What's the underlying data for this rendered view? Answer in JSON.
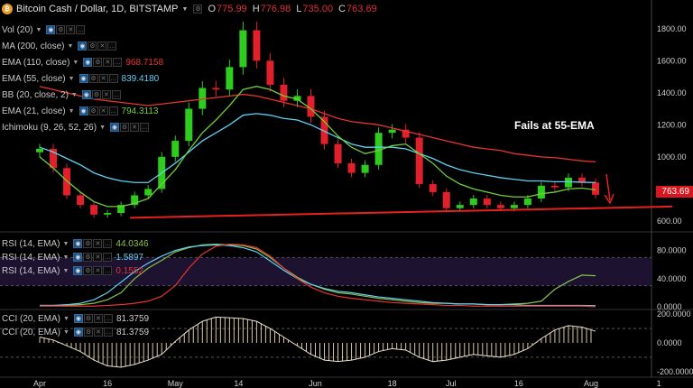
{
  "header": {
    "title": "Bitcoin Cash / Dollar, 1D, BITSTAMP",
    "ohlc": [
      {
        "k": "O",
        "v": "775.99"
      },
      {
        "k": "H",
        "v": "776.98"
      },
      {
        "k": "L",
        "v": "735.00"
      },
      {
        "k": "C",
        "v": "763.69"
      }
    ]
  },
  "legends": [
    {
      "label": "Vol (20)",
      "value": "",
      "color": "#cccccc"
    },
    {
      "label": "MA (200, close)",
      "value": "",
      "color": "#cccccc"
    },
    {
      "label": "EMA (110, close)",
      "value": "968.7158",
      "color": "#e8332e"
    },
    {
      "label": "EMA (55, close)",
      "value": "839.4180",
      "color": "#5fd0f5"
    },
    {
      "label": "BB (20, close, 2)",
      "value": "",
      "color": "#cccccc"
    },
    {
      "label": "EMA (21, close)",
      "value": "794.3113",
      "color": "#6fcf3a"
    },
    {
      "label": "Ichimoku (9, 26, 52, 26)",
      "value": "",
      "color": "#cccccc"
    }
  ],
  "rsi_legends": [
    {
      "label": "RSI (14, EMA)",
      "value": "44.0346",
      "color": "#88c34a"
    },
    {
      "label": "RSI (14, EMA)",
      "value": "1.5897",
      "color": "#5fd0f5"
    },
    {
      "label": "RSI (14, EMA)",
      "value": "0.1552",
      "color": "#e8332e"
    }
  ],
  "cci_legends": [
    {
      "label": "CCI (20, EMA)",
      "value": "81.3759",
      "color": "#cccccc"
    },
    {
      "label": "CCI (20, EMA)",
      "value": "81.3759",
      "color": "#cccccc"
    }
  ],
  "annotation": "Fails at 55-EMA",
  "last_price": "763.69",
  "colors": {
    "up": "#2ecc1f",
    "down": "#e0202a",
    "ema110": "#e8332e",
    "ema55": "#5fd0f5",
    "ema21": "#6fcf3a",
    "trendline": "#e82020"
  },
  "chart_data": [
    {
      "type": "line",
      "title": "Bitcoin Cash / Dollar, 1D, BITSTAMP",
      "xlabel": "",
      "ylabel": "",
      "ylim": [
        560,
        1900
      ],
      "y_ticks": [
        "1800.00",
        "1600.00",
        "1400.00",
        "1200.00",
        "1000.00",
        "800.00",
        "600.00"
      ],
      "y_tick_values": [
        1800,
        1600,
        1400,
        1200,
        1000,
        800,
        600
      ],
      "x": [
        0,
        3,
        6,
        9,
        12,
        15,
        18,
        21,
        24,
        27,
        30,
        33,
        36,
        39,
        42,
        45,
        48,
        51,
        54,
        57,
        60,
        63,
        66,
        69,
        72,
        75,
        78,
        81,
        84,
        87,
        90,
        93,
        96,
        99,
        102,
        105,
        108,
        111,
        114,
        117,
        120,
        123
      ],
      "close": [
        1050,
        930,
        760,
        700,
        640,
        650,
        700,
        760,
        800,
        1000,
        1100,
        1300,
        1430,
        1420,
        1560,
        1790,
        1600,
        1450,
        1350,
        1380,
        1250,
        1080,
        960,
        900,
        950,
        1150,
        1170,
        1120,
        830,
        780,
        680,
        700,
        740,
        700,
        680,
        700,
        740,
        820,
        810,
        870,
        840,
        763.69
      ],
      "series": [
        {
          "name": "EMA (110, close)",
          "values": [
            1440,
            1420,
            1400,
            1380,
            1360,
            1350,
            1340,
            1330,
            1320,
            1330,
            1340,
            1350,
            1360,
            1370,
            1380,
            1390,
            1380,
            1360,
            1340,
            1320,
            1300,
            1270,
            1240,
            1220,
            1210,
            1200,
            1180,
            1160,
            1140,
            1120,
            1100,
            1080,
            1060,
            1050,
            1040,
            1020,
            1010,
            1000,
            995,
            985,
            975,
            968.7
          ]
        },
        {
          "name": "EMA (55, close)",
          "values": [
            1060,
            1030,
            990,
            950,
            900,
            870,
            850,
            840,
            840,
            900,
            960,
            1030,
            1100,
            1150,
            1200,
            1260,
            1270,
            1260,
            1240,
            1230,
            1200,
            1160,
            1120,
            1080,
            1060,
            1060,
            1060,
            1050,
            1020,
            990,
            950,
            920,
            900,
            885,
            870,
            860,
            850,
            850,
            845,
            845,
            842,
            839.4
          ]
        },
        {
          "name": "EMA (21, close)",
          "values": [
            1000,
            930,
            850,
            780,
            720,
            690,
            690,
            710,
            740,
            830,
            920,
            1040,
            1150,
            1230,
            1320,
            1420,
            1440,
            1420,
            1380,
            1360,
            1300,
            1220,
            1130,
            1060,
            1020,
            1040,
            1070,
            1080,
            1020,
            960,
            880,
            830,
            800,
            780,
            760,
            750,
            750,
            770,
            780,
            800,
            805,
            794.3
          ]
        }
      ],
      "trendline": {
        "from": [
          20,
          620
        ],
        "to": [
          140,
          690
        ]
      }
    },
    {
      "type": "line",
      "title": "RSI (14, EMA)",
      "ylim": [
        0,
        100
      ],
      "y_ticks": [
        "80.0000",
        "40.0000",
        "0.0000"
      ],
      "y_tick_values": [
        80,
        40,
        0
      ],
      "series": [
        {
          "name": "RSI (14, EMA)",
          "values": [
            2,
            2,
            2,
            3,
            5,
            10,
            20,
            40,
            55,
            66,
            78,
            84,
            88,
            89,
            88,
            87,
            82,
            70,
            55,
            42,
            32,
            25,
            20,
            18,
            15,
            12,
            10,
            8,
            6,
            5,
            5,
            4,
            4,
            3,
            3,
            4,
            5,
            8,
            25,
            36,
            45,
            44.03
          ]
        },
        {
          "name": "RSI (14, EMA)",
          "values": [
            2,
            2,
            3,
            5,
            10,
            20,
            35,
            50,
            62,
            72,
            80,
            85,
            87,
            88,
            87,
            84,
            78,
            65,
            52,
            40,
            32,
            26,
            22,
            20,
            17,
            14,
            12,
            10,
            8,
            6,
            5,
            4,
            4,
            3,
            3,
            3,
            2,
            2,
            2,
            2,
            2,
            1.59
          ]
        },
        {
          "name": "RSI (14, EMA)",
          "values": [
            1,
            1,
            1,
            1,
            1,
            2,
            3,
            5,
            8,
            15,
            30,
            55,
            75,
            86,
            89,
            88,
            84,
            72,
            55,
            40,
            28,
            20,
            15,
            12,
            10,
            8,
            6,
            5,
            4,
            3,
            2,
            2,
            1,
            1,
            1,
            1,
            1,
            1,
            1,
            1,
            1,
            0.16
          ]
        }
      ]
    },
    {
      "type": "area",
      "title": "CCI (20, EMA)",
      "ylim": [
        -220,
        220
      ],
      "y_ticks": [
        "200.0000",
        "0.0000",
        "-200.0000"
      ],
      "y_tick_values": [
        200,
        0,
        -200
      ],
      "values": [
        40,
        20,
        -20,
        -60,
        -120,
        -160,
        -170,
        -150,
        -120,
        -80,
        10,
        90,
        150,
        180,
        175,
        170,
        150,
        100,
        40,
        -20,
        -80,
        -120,
        -130,
        -120,
        -100,
        -60,
        -40,
        -50,
        -100,
        -130,
        -120,
        -100,
        -80,
        -90,
        -100,
        -80,
        -40,
        30,
        90,
        120,
        110,
        81.38
      ]
    }
  ],
  "x_labels": [
    {
      "label": "Apr",
      "d": 0
    },
    {
      "label": "16",
      "d": 15
    },
    {
      "label": "May",
      "d": 30
    },
    {
      "label": "14",
      "d": 44
    },
    {
      "label": "Jun",
      "d": 61
    },
    {
      "label": "18",
      "d": 78
    },
    {
      "label": "Jul",
      "d": 91
    },
    {
      "label": "16",
      "d": 106
    },
    {
      "label": "Aug",
      "d": 122
    },
    {
      "label": "1",
      "d": 137
    }
  ]
}
